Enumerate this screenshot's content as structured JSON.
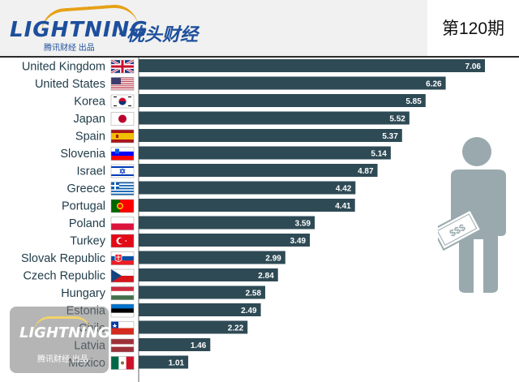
{
  "header": {
    "logo_text": "LIGHTNING",
    "logo_dot": "·",
    "logo_cn": "枕头财经",
    "logo_sub": "腾讯财经 出品",
    "issue": "第120期"
  },
  "watermark": {
    "logo_text": "LIGHTNING",
    "sub": "腾讯财经 出品"
  },
  "colors": {
    "bar": "#2e4a55",
    "value_text": "#ffffff",
    "person": "#9aa9ae",
    "logo": "#1d4f9c",
    "accent": "#e6a117"
  },
  "person": {
    "label": "$$$"
  },
  "chart_data": {
    "type": "bar",
    "orientation": "horizontal",
    "categories": [
      "United Kingdom",
      "United States",
      "Korea",
      "Japan",
      "Spain",
      "Slovenia",
      "Israel",
      "Greece",
      "Portugal",
      "Poland",
      "Turkey",
      "Slovak Republic",
      "Czech Republic",
      "Hungary",
      "Estonia",
      "Chile",
      "Latvia",
      "Mexico"
    ],
    "values": [
      7.06,
      6.26,
      5.85,
      5.52,
      5.37,
      5.14,
      4.87,
      4.42,
      4.41,
      3.59,
      3.49,
      2.99,
      2.84,
      2.58,
      2.49,
      2.22,
      1.46,
      1.01
    ],
    "value_labels": [
      "7.06",
      "6.26",
      "5.85",
      "5.52",
      "5.37",
      "5.14",
      "4.87",
      "4.42",
      "4.41",
      "3.59",
      "3.49",
      "2.99",
      "2.84",
      "2.58",
      "2.49",
      "2.22",
      "1.46",
      "1.01"
    ],
    "flags": [
      "united-kingdom-flag",
      "united-states-flag",
      "korea-flag",
      "japan-flag",
      "spain-flag",
      "slovenia-flag",
      "israel-flag",
      "greece-flag",
      "portugal-flag",
      "poland-flag",
      "turkey-flag",
      "slovak-republic-flag",
      "czech-republic-flag",
      "hungary-flag",
      "estonia-flag",
      "chile-flag",
      "latvia-flag",
      "mexico-flag"
    ],
    "xlim": [
      0,
      7.06
    ]
  }
}
